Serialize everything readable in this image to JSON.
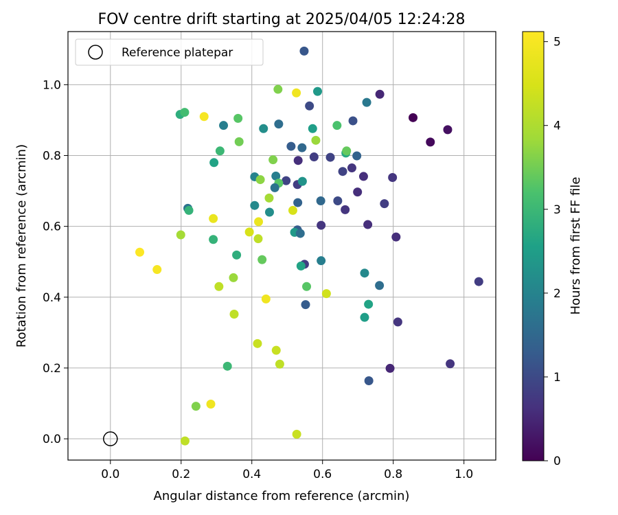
{
  "chart_data": {
    "type": "scatter",
    "title": "FOV centre drift starting at 2025/04/05 12:24:28",
    "xlabel": "Angular distance from reference (arcmin)",
    "ylabel": "Rotation from reference (arcmin)",
    "xlim": [
      -0.12,
      1.09
    ],
    "ylim": [
      -0.06,
      1.15
    ],
    "xticks": [
      0.0,
      0.2,
      0.4,
      0.6,
      0.8,
      1.0
    ],
    "yticks": [
      0.0,
      0.2,
      0.4,
      0.6,
      0.8,
      1.0
    ],
    "xtick_labels": [
      "0.0",
      "0.2",
      "0.4",
      "0.6",
      "0.8",
      "1.0"
    ],
    "ytick_labels": [
      "0.0",
      "0.2",
      "0.4",
      "0.6",
      "0.8",
      "1.0"
    ],
    "grid": true,
    "colormap": "viridis",
    "colorbar": {
      "label": "Hours from first FF file",
      "range": [
        0,
        5.12
      ],
      "ticks": [
        0,
        1,
        2,
        3,
        4,
        5
      ],
      "tick_labels": [
        "0",
        "1",
        "2",
        "3",
        "4",
        "5"
      ]
    },
    "legend": {
      "placement": "upper-left",
      "entries": [
        {
          "label": "Reference platepar",
          "marker": "open-circle"
        }
      ]
    },
    "reference_point": {
      "x": 0.0,
      "y": 0.0
    },
    "points": [
      [
        0.548,
        1.095,
        1.2
      ],
      [
        0.762,
        0.973,
        0.5
      ],
      [
        0.586,
        0.981,
        2.4
      ],
      [
        0.474,
        0.987,
        3.6
      ],
      [
        0.526,
        0.977,
        4.9
      ],
      [
        0.725,
        0.95,
        1.8
      ],
      [
        0.563,
        0.94,
        1.0
      ],
      [
        0.197,
        0.916,
        2.8
      ],
      [
        0.21,
        0.922,
        3.1
      ],
      [
        0.265,
        0.91,
        5.0
      ],
      [
        0.856,
        0.907,
        0.0
      ],
      [
        0.954,
        0.873,
        0.2
      ],
      [
        0.905,
        0.838,
        0.1
      ],
      [
        0.686,
        0.898,
        1.1
      ],
      [
        0.361,
        0.905,
        3.3
      ],
      [
        0.32,
        0.885,
        1.9
      ],
      [
        0.476,
        0.889,
        1.6
      ],
      [
        0.433,
        0.876,
        2.2
      ],
      [
        0.572,
        0.876,
        2.5
      ],
      [
        0.641,
        0.885,
        3.2
      ],
      [
        0.581,
        0.843,
        3.8
      ],
      [
        0.364,
        0.839,
        3.5
      ],
      [
        0.31,
        0.813,
        3.0
      ],
      [
        0.511,
        0.826,
        1.3
      ],
      [
        0.542,
        0.822,
        1.5
      ],
      [
        0.666,
        0.807,
        2.7
      ],
      [
        0.668,
        0.813,
        3.4
      ],
      [
        0.697,
        0.799,
        1.4
      ],
      [
        0.576,
        0.796,
        0.8
      ],
      [
        0.622,
        0.795,
        0.9
      ],
      [
        0.531,
        0.786,
        0.6
      ],
      [
        0.46,
        0.788,
        3.6
      ],
      [
        0.293,
        0.78,
        2.6
      ],
      [
        0.683,
        0.765,
        0.7
      ],
      [
        0.657,
        0.755,
        0.9
      ],
      [
        0.716,
        0.741,
        0.6
      ],
      [
        0.798,
        0.738,
        0.7
      ],
      [
        0.408,
        0.74,
        2.0
      ],
      [
        0.468,
        0.742,
        1.9
      ],
      [
        0.424,
        0.732,
        3.7
      ],
      [
        0.497,
        0.729,
        0.9
      ],
      [
        0.476,
        0.722,
        3.3
      ],
      [
        0.529,
        0.718,
        0.8
      ],
      [
        0.543,
        0.727,
        2.3
      ],
      [
        0.465,
        0.709,
        1.7
      ],
      [
        0.699,
        0.697,
        0.6
      ],
      [
        0.449,
        0.68,
        3.9
      ],
      [
        0.643,
        0.672,
        1.0
      ],
      [
        0.595,
        0.672,
        1.5
      ],
      [
        0.53,
        0.667,
        1.4
      ],
      [
        0.775,
        0.664,
        0.8
      ],
      [
        0.408,
        0.659,
        2.1
      ],
      [
        0.219,
        0.651,
        1.7
      ],
      [
        0.222,
        0.645,
        2.9
      ],
      [
        0.516,
        0.645,
        4.5
      ],
      [
        0.664,
        0.647,
        0.7
      ],
      [
        0.45,
        0.64,
        2.2
      ],
      [
        0.291,
        0.622,
        4.8
      ],
      [
        0.419,
        0.613,
        4.8
      ],
      [
        0.596,
        0.603,
        0.7
      ],
      [
        0.728,
        0.605,
        0.6
      ],
      [
        0.529,
        0.59,
        1.3
      ],
      [
        0.521,
        0.583,
        2.4
      ],
      [
        0.537,
        0.58,
        1.6
      ],
      [
        0.393,
        0.584,
        4.5
      ],
      [
        0.199,
        0.576,
        3.9
      ],
      [
        0.808,
        0.57,
        0.6
      ],
      [
        0.291,
        0.563,
        2.9
      ],
      [
        0.418,
        0.565,
        4.2
      ],
      [
        0.083,
        0.527,
        5.1
      ],
      [
        0.357,
        0.519,
        2.8
      ],
      [
        0.429,
        0.506,
        3.4
      ],
      [
        0.549,
        0.493,
        0.8
      ],
      [
        0.539,
        0.488,
        2.6
      ],
      [
        0.596,
        0.503,
        1.9
      ],
      [
        0.132,
        0.478,
        5.0
      ],
      [
        0.719,
        0.468,
        2.1
      ],
      [
        0.348,
        0.455,
        3.8
      ],
      [
        0.761,
        0.433,
        1.6
      ],
      [
        0.555,
        0.43,
        3.3
      ],
      [
        0.307,
        0.43,
        4.2
      ],
      [
        1.042,
        0.444,
        0.8
      ],
      [
        0.611,
        0.41,
        4.4
      ],
      [
        0.44,
        0.395,
        4.9
      ],
      [
        0.552,
        0.379,
        1.3
      ],
      [
        0.73,
        0.38,
        2.6
      ],
      [
        0.35,
        0.352,
        4.2
      ],
      [
        0.719,
        0.343,
        2.5
      ],
      [
        0.813,
        0.33,
        0.7
      ],
      [
        0.416,
        0.269,
        4.3
      ],
      [
        0.469,
        0.25,
        4.3
      ],
      [
        0.479,
        0.211,
        4.2
      ],
      [
        0.331,
        0.205,
        3.0
      ],
      [
        0.791,
        0.199,
        0.5
      ],
      [
        0.961,
        0.212,
        0.7
      ],
      [
        0.731,
        0.164,
        1.2
      ],
      [
        0.242,
        0.092,
        3.6
      ],
      [
        0.284,
        0.098,
        4.9
      ],
      [
        0.527,
        0.013,
        4.3
      ],
      [
        0.211,
        -0.006,
        4.2
      ]
    ]
  }
}
